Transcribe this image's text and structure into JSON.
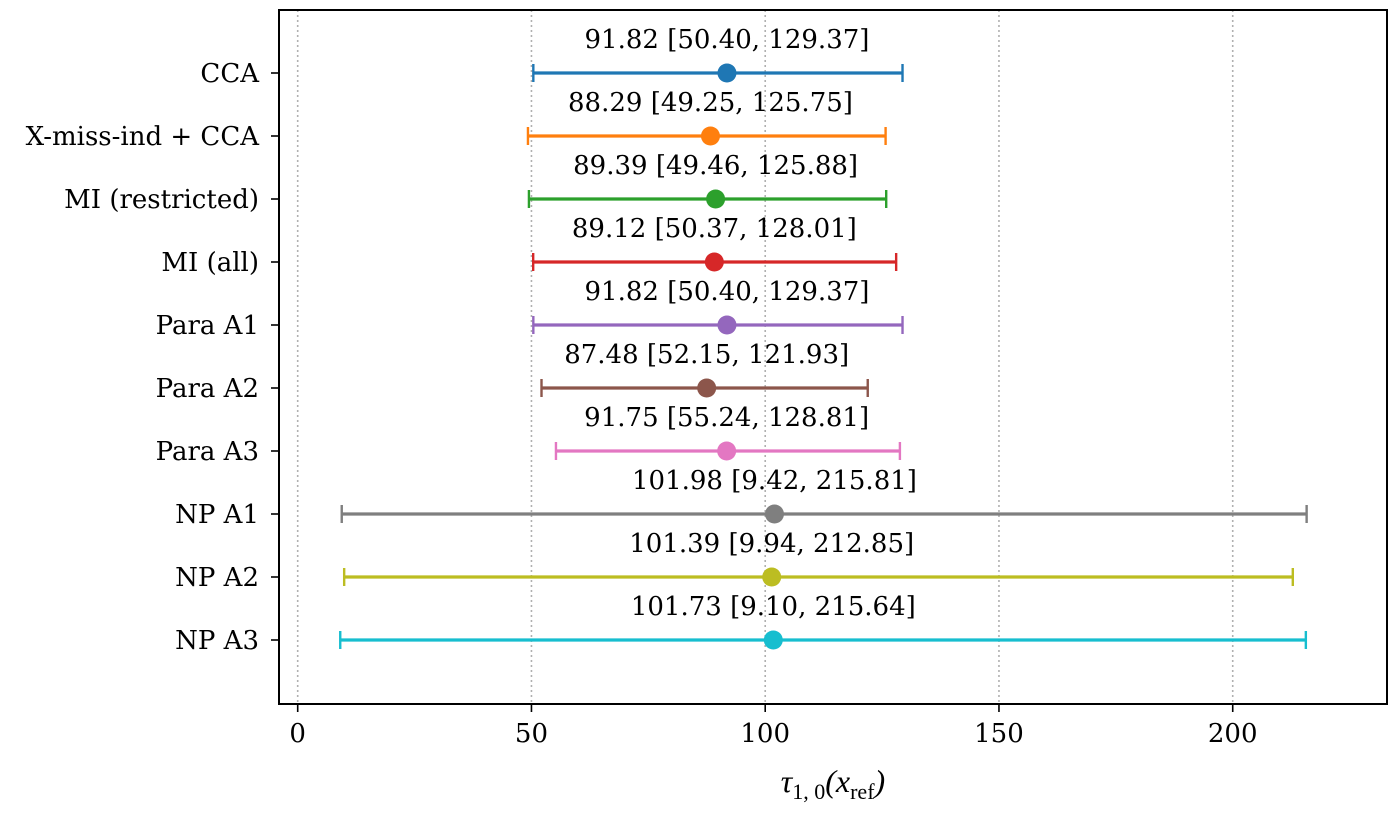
{
  "chart_data": {
    "type": "errorbar",
    "title": "",
    "xlabel": {
      "symbol": "τ",
      "subscript": "1, 0",
      "argument": "x",
      "argument_subscript": "ref"
    },
    "ylabel": "",
    "xlim": [
      -4,
      233
    ],
    "xticks": [
      0,
      50,
      100,
      150,
      200
    ],
    "grid": "vertical dotted",
    "series": [
      {
        "name": "CCA",
        "estimate": 91.82,
        "lower": 50.4,
        "upper": 129.37,
        "label": "91.82 [50.40, 129.37]",
        "color": "#1f77b4"
      },
      {
        "name": "X-miss-ind + CCA",
        "estimate": 88.29,
        "lower": 49.25,
        "upper": 125.75,
        "label": "88.29 [49.25, 125.75]",
        "color": "#ff7f0e"
      },
      {
        "name": "MI (restricted)",
        "estimate": 89.39,
        "lower": 49.46,
        "upper": 125.88,
        "label": "89.39 [49.46, 125.88]",
        "color": "#2ca02c"
      },
      {
        "name": "MI (all)",
        "estimate": 89.12,
        "lower": 50.37,
        "upper": 128.01,
        "label": "89.12 [50.37, 128.01]",
        "color": "#d62728"
      },
      {
        "name": "Para A1",
        "estimate": 91.82,
        "lower": 50.4,
        "upper": 129.37,
        "label": "91.82 [50.40, 129.37]",
        "color": "#9467bd"
      },
      {
        "name": "Para A2",
        "estimate": 87.48,
        "lower": 52.15,
        "upper": 121.93,
        "label": "87.48 [52.15, 121.93]",
        "color": "#8c564b"
      },
      {
        "name": "Para A3",
        "estimate": 91.75,
        "lower": 55.24,
        "upper": 128.81,
        "label": "91.75 [55.24, 128.81]",
        "color": "#e377c2"
      },
      {
        "name": "NP A1",
        "estimate": 101.98,
        "lower": 9.42,
        "upper": 215.81,
        "label": "101.98 [9.42, 215.81]",
        "color": "#7f7f7f"
      },
      {
        "name": "NP A2",
        "estimate": 101.39,
        "lower": 9.94,
        "upper": 212.85,
        "label": "101.39 [9.94, 212.85]",
        "color": "#bcbd22"
      },
      {
        "name": "NP A3",
        "estimate": 101.73,
        "lower": 9.1,
        "upper": 215.64,
        "label": "101.73 [9.10, 215.64]",
        "color": "#17becf"
      }
    ]
  }
}
